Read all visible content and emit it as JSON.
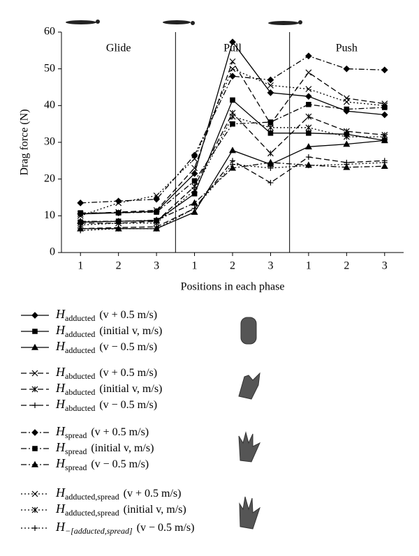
{
  "chart_data": {
    "type": "line",
    "ylabel": "Drag force (N)",
    "xlabel": "Positions in each phase",
    "phases": [
      "Glide",
      "Pull",
      "Push"
    ],
    "categories": [
      "1",
      "2",
      "3",
      "1",
      "2",
      "3",
      "1",
      "2",
      "3"
    ],
    "ylim": [
      0,
      60
    ],
    "yticks": [
      0,
      10,
      20,
      30,
      40,
      50,
      60
    ],
    "series": [
      {
        "name": "H",
        "subscript": "adducted",
        "condition": "(v + 0.5 m/s)",
        "color": "#000000",
        "dash": "solid",
        "marker": "diamond",
        "values": [
          10.5,
          10.8,
          11.2,
          21.5,
          57.3,
          43.5,
          42.5,
          38.5,
          37.5
        ]
      },
      {
        "name": "H",
        "subscript": "adducted",
        "condition": "(initial v, m/s)",
        "color": "#000000",
        "dash": "solid",
        "marker": "square",
        "values": [
          8.3,
          8.5,
          8.7,
          16,
          41.5,
          32.5,
          32.5,
          32.2,
          30.5
        ]
      },
      {
        "name": "H",
        "subscript": "adducted",
        "condition": "(v − 0.5 m/s)",
        "color": "#000000",
        "dash": "solid",
        "marker": "triangle",
        "values": [
          6.5,
          6.5,
          6.5,
          11,
          27.8,
          24,
          28.8,
          29.5,
          30.5
        ]
      },
      {
        "name": "H",
        "subscript": "abducted",
        "condition": "(v + 0.5 m/s)",
        "color": "#000000",
        "dash": "dashed",
        "marker": "x",
        "values": [
          10.5,
          11,
          11.5,
          23,
          52,
          35,
          49,
          42,
          40.5
        ]
      },
      {
        "name": "H",
        "subscript": "abducted",
        "condition": "(initial v, m/s)",
        "color": "#000000",
        "dash": "dashed",
        "marker": "star",
        "values": [
          8,
          8,
          8.5,
          18,
          38,
          27,
          37,
          33,
          32
        ]
      },
      {
        "name": "H",
        "subscript": "abducted",
        "condition": "(v − 0.5 m/s)",
        "color": "#000000",
        "dash": "dashed",
        "marker": "plus",
        "values": [
          6.5,
          6.8,
          7,
          12,
          25,
          19,
          26,
          24.5,
          25
        ]
      },
      {
        "name": "H",
        "subscript": "spread",
        "condition": "(v + 0.5 m/s)",
        "color": "#000000",
        "dash": "dashdot",
        "marker": "diamond",
        "values": [
          13.5,
          14,
          14.5,
          26.5,
          48,
          47,
          53.5,
          50,
          49.7
        ]
      },
      {
        "name": "H",
        "subscript": "spread",
        "condition": "(initial v, m/s)",
        "color": "#000000",
        "dash": "dashdot",
        "marker": "square",
        "values": [
          10.8,
          10.8,
          11,
          19.5,
          35,
          35.5,
          40.3,
          39,
          39.5
        ]
      },
      {
        "name": "H",
        "subscript": "spread",
        "condition": "(v − 0.5 m/s)",
        "color": "#000000",
        "dash": "dashdot",
        "marker": "triangle",
        "values": [
          8.5,
          8.5,
          8.8,
          13.5,
          23,
          24.5,
          23.8,
          23.2,
          23.5
        ]
      },
      {
        "name": "H",
        "subscript": "adducted,spread",
        "condition": "(v + 0.5 m/s)",
        "color": "#000000",
        "dash": "dotted",
        "marker": "x",
        "values": [
          10,
          13.5,
          15.5,
          25.5,
          50,
          45.5,
          44.5,
          41,
          40
        ]
      },
      {
        "name": "H",
        "subscript": "adducted,spread",
        "condition": "(initial v, m/s)",
        "color": "#000000",
        "dash": "dotted",
        "marker": "star",
        "values": [
          7.5,
          8,
          8,
          17,
          37,
          34,
          34,
          31.5,
          31.5
        ]
      },
      {
        "name": "H",
        "subscript": "−[adducted,spread]",
        "condition": "(v − 0.5 m/s)",
        "color": "#000000",
        "dash": "dotted",
        "marker": "plus",
        "values": [
          6,
          6.5,
          6.5,
          12,
          24,
          23,
          23.7,
          24,
          24.5
        ]
      }
    ]
  }
}
